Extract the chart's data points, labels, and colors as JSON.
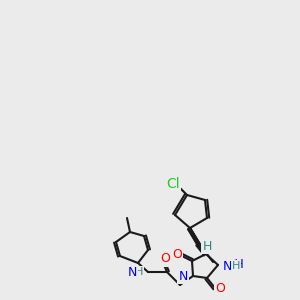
{
  "bg_color": "#ebebeb",
  "bond_color": "#1a1a1a",
  "lw": 1.5,
  "atom_colors": {
    "Cl": "#22cc22",
    "S": "#999900",
    "O": "#ff0000",
    "N": "#0000ff",
    "H": "#338888",
    "C": "#1a1a1a"
  },
  "font_size": 9,
  "font_size_small": 8
}
